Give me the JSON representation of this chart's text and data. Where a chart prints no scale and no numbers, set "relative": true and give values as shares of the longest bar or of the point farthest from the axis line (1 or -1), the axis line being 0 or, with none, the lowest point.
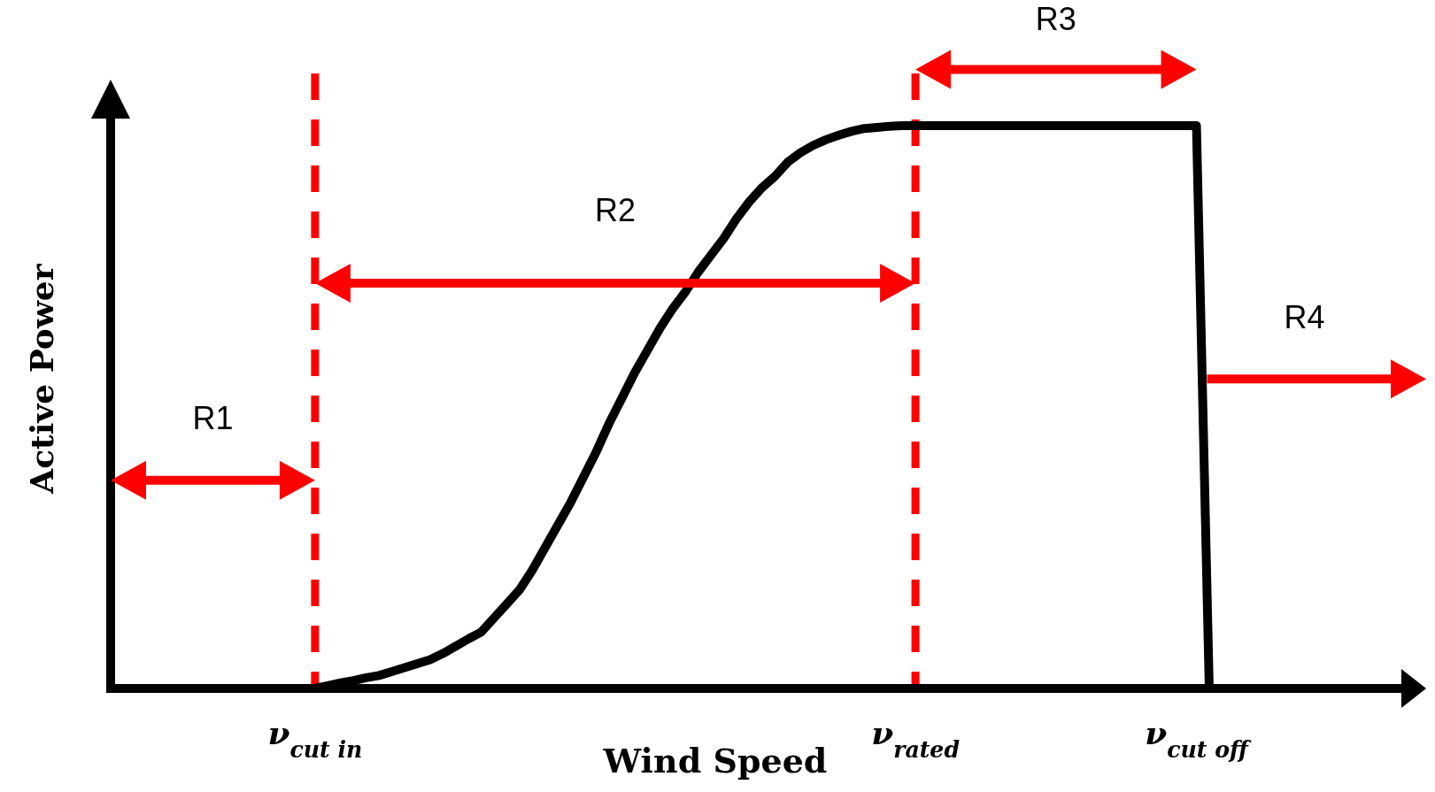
{
  "chart_data": {
    "type": "line",
    "relative": true,
    "xlabel": "Wind Speed",
    "ylabel": "Active Power",
    "categories": [
      null,
      null,
      null,
      null,
      null,
      null,
      null,
      null,
      null,
      null,
      null,
      null,
      null,
      null,
      null,
      null,
      "ν$_{cut in}$",
      null,
      null,
      null,
      null,
      null,
      null,
      null,
      null,
      null,
      null,
      null,
      null,
      null,
      null,
      null,
      null,
      null,
      null,
      null,
      null,
      null,
      null,
      null,
      null,
      null,
      null,
      null,
      null,
      null,
      null,
      null,
      null,
      null,
      null,
      null,
      null,
      null,
      null,
      null,
      null,
      null,
      null,
      null,
      null,
      null,
      null,
      "ν$_{rated}$",
      null,
      null,
      null,
      null,
      null,
      null,
      null,
      null,
      null,
      null,
      null,
      null,
      null,
      null,
      null,
      null,
      null,
      null,
      null,
      null,
      null,
      "ν$_{cut off}$",
      null,
      null,
      null,
      null,
      null,
      null,
      null,
      null,
      null,
      null,
      null,
      null,
      null,
      null,
      null
    ],
    "series": [
      {
        "color": "#000000",
        "values": [
          0,
          0,
          0,
          0,
          0,
          0,
          0,
          0,
          0,
          0,
          0,
          0,
          0,
          0,
          0,
          0,
          0,
          0.005,
          0.01,
          0.014,
          0.019,
          0.023,
          0.03,
          0.037,
          0.044,
          0.051,
          0.062,
          0.075,
          0.088,
          0.1,
          0.125,
          0.15,
          0.175,
          0.21,
          0.25,
          0.29,
          0.33,
          0.375,
          0.42,
          0.47,
          0.515,
          0.56,
          0.6,
          0.64,
          0.675,
          0.705,
          0.74,
          0.77,
          0.8,
          0.835,
          0.865,
          0.89,
          0.91,
          0.935,
          0.952,
          0.965,
          0.975,
          0.983,
          0.99,
          0.995,
          0.997,
          0.999,
          1,
          1,
          1,
          1,
          1,
          1,
          1,
          1,
          1,
          1,
          1,
          1,
          1,
          1,
          1,
          1,
          1,
          1,
          1,
          1,
          1,
          1,
          1,
          1,
          0,
          0,
          0,
          0,
          0,
          0,
          0,
          0,
          0,
          0,
          0,
          0,
          0,
          0,
          0
        ]
      }
    ],
    "ref_lines": [
      {
        "axis": "x",
        "value": "ν$_{cut in}$",
        "color": "#ff0000",
        "line_style": "dashed"
      },
      {
        "axis": "x",
        "value": "ν$_{rated}$",
        "color": "#ff0000",
        "line_style": "dashed"
      }
    ],
    "annotations": [
      "R1",
      "R2",
      "R3",
      "R4"
    ],
    "grid": false,
    "legend": false,
    "marker": "none",
    "line_style": "solid"
  }
}
